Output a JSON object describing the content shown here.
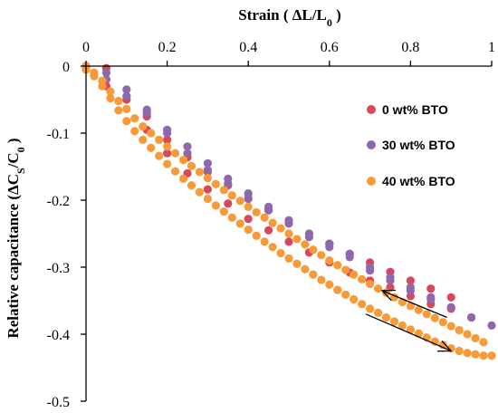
{
  "chart_data": {
    "type": "scatter",
    "title": "",
    "xlabel": "Strain ( ΔL/L0 )",
    "ylabel": "Relative capacitance (ΔCS/C0 )",
    "xlim": [
      0,
      1
    ],
    "ylim": [
      -0.5,
      0
    ],
    "x_ticks": [
      "0",
      "0.2",
      "0.4",
      "0.6",
      "0.8",
      "1"
    ],
    "y_ticks": [
      "0",
      "-0.1",
      "-0.2",
      "-0.3",
      "-0.4",
      "-0.5"
    ],
    "x_tick_values": [
      0,
      0.2,
      0.4,
      0.6,
      0.8,
      1
    ],
    "y_tick_values": [
      0,
      -0.1,
      -0.2,
      -0.3,
      -0.4,
      -0.5
    ],
    "x_axis_position": "top",
    "grid": false,
    "legend_position": "right",
    "annotations": [
      "arrow-loading",
      "arrow-unloading"
    ],
    "series": [
      {
        "name": "0 wt% BTO",
        "color": "#d9485a",
        "x": [
          0.0,
          0.05,
          0.1,
          0.15,
          0.2,
          0.25,
          0.3,
          0.35,
          0.4,
          0.45,
          0.5,
          0.55,
          0.6,
          0.65,
          0.7,
          0.75,
          0.8,
          0.85,
          0.9,
          0.95,
          0.0,
          0.05,
          0.1,
          0.15,
          0.2,
          0.25,
          0.3,
          0.35,
          0.4,
          0.45,
          0.5,
          0.55,
          0.6,
          0.65,
          0.7,
          0.75,
          0.8,
          0.85,
          0.9
        ],
        "y": [
          0.0,
          -0.003,
          -0.045,
          -0.075,
          -0.11,
          -0.136,
          -0.158,
          -0.178,
          -0.198,
          -0.215,
          -0.233,
          -0.25,
          -0.265,
          -0.28,
          -0.293,
          -0.307,
          -0.32,
          -0.332,
          -0.345,
          -0.375,
          -0.005,
          -0.03,
          -0.05,
          -0.095,
          -0.13,
          -0.16,
          -0.184,
          -0.205,
          -0.228,
          -0.245,
          -0.262,
          -0.278,
          -0.293,
          -0.308,
          -0.32,
          -0.33,
          -0.343,
          -0.355,
          -0.362
        ]
      },
      {
        "name": "30 wt% BTO",
        "color": "#8e68ad",
        "x": [
          0.0,
          0.05,
          0.1,
          0.15,
          0.2,
          0.25,
          0.3,
          0.35,
          0.4,
          0.45,
          0.5,
          0.55,
          0.6,
          0.65,
          0.7,
          0.75,
          0.8,
          0.85,
          0.9,
          0.95,
          1.0,
          0.02,
          0.05,
          0.1,
          0.15,
          0.2,
          0.25,
          0.3,
          0.35,
          0.4,
          0.45,
          0.5,
          0.55,
          0.6,
          0.65,
          0.7,
          0.75,
          0.8,
          0.85,
          0.9
        ],
        "y": [
          0.0,
          -0.01,
          -0.035,
          -0.065,
          -0.095,
          -0.12,
          -0.145,
          -0.168,
          -0.19,
          -0.21,
          -0.23,
          -0.25,
          -0.265,
          -0.28,
          -0.3,
          -0.315,
          -0.33,
          -0.345,
          -0.36,
          -0.375,
          -0.387,
          -0.01,
          -0.02,
          -0.045,
          -0.07,
          -0.1,
          -0.13,
          -0.155,
          -0.175,
          -0.197,
          -0.215,
          -0.235,
          -0.255,
          -0.27,
          -0.285,
          -0.305,
          -0.32,
          -0.335,
          -0.348,
          -0.36
        ]
      },
      {
        "name": "40 wt% BTO",
        "color": "#f79a37",
        "x": [
          0.0,
          0.02,
          0.04,
          0.06,
          0.08,
          0.1,
          0.12,
          0.14,
          0.16,
          0.18,
          0.2,
          0.22,
          0.24,
          0.26,
          0.28,
          0.3,
          0.32,
          0.34,
          0.36,
          0.38,
          0.4,
          0.42,
          0.44,
          0.46,
          0.48,
          0.5,
          0.52,
          0.54,
          0.56,
          0.58,
          0.6,
          0.62,
          0.64,
          0.66,
          0.68,
          0.7,
          0.72,
          0.74,
          0.76,
          0.78,
          0.8,
          0.82,
          0.84,
          0.86,
          0.88,
          0.9,
          0.92,
          0.94,
          0.96,
          0.98,
          1.0,
          0.0,
          0.02,
          0.04,
          0.06,
          0.08,
          0.1,
          0.12,
          0.14,
          0.16,
          0.18,
          0.2,
          0.22,
          0.24,
          0.26,
          0.28,
          0.3,
          0.32,
          0.34,
          0.36,
          0.38,
          0.4,
          0.42,
          0.44,
          0.46,
          0.48,
          0.5,
          0.52,
          0.54,
          0.56,
          0.58,
          0.6,
          0.62,
          0.64,
          0.66,
          0.68,
          0.7,
          0.72,
          0.74,
          0.76,
          0.78,
          0.8,
          0.82,
          0.84,
          0.86,
          0.88,
          0.9,
          0.92,
          0.94,
          0.96,
          0.98
        ],
        "y": [
          0.0,
          -0.01,
          -0.022,
          -0.038,
          -0.052,
          -0.064,
          -0.078,
          -0.09,
          -0.1,
          -0.11,
          -0.12,
          -0.13,
          -0.14,
          -0.149,
          -0.158,
          -0.167,
          -0.176,
          -0.185,
          -0.193,
          -0.201,
          -0.21,
          -0.218,
          -0.226,
          -0.234,
          -0.242,
          -0.25,
          -0.258,
          -0.266,
          -0.274,
          -0.282,
          -0.29,
          -0.297,
          -0.304,
          -0.311,
          -0.318,
          -0.325,
          -0.332,
          -0.338,
          -0.345,
          -0.352,
          -0.358,
          -0.364,
          -0.37,
          -0.376,
          -0.382,
          -0.388,
          -0.394,
          -0.4,
          -0.406,
          -0.412,
          -0.432,
          -0.005,
          -0.015,
          -0.03,
          -0.048,
          -0.066,
          -0.082,
          -0.097,
          -0.11,
          -0.122,
          -0.134,
          -0.146,
          -0.157,
          -0.168,
          -0.178,
          -0.188,
          -0.198,
          -0.208,
          -0.217,
          -0.226,
          -0.235,
          -0.244,
          -0.253,
          -0.262,
          -0.27,
          -0.279,
          -0.287,
          -0.295,
          -0.303,
          -0.311,
          -0.319,
          -0.326,
          -0.334,
          -0.341,
          -0.348,
          -0.355,
          -0.362,
          -0.368,
          -0.375,
          -0.381,
          -0.387,
          -0.393,
          -0.399,
          -0.405,
          -0.411,
          -0.416,
          -0.421,
          -0.425,
          -0.428,
          -0.43,
          -0.432
        ]
      }
    ]
  }
}
